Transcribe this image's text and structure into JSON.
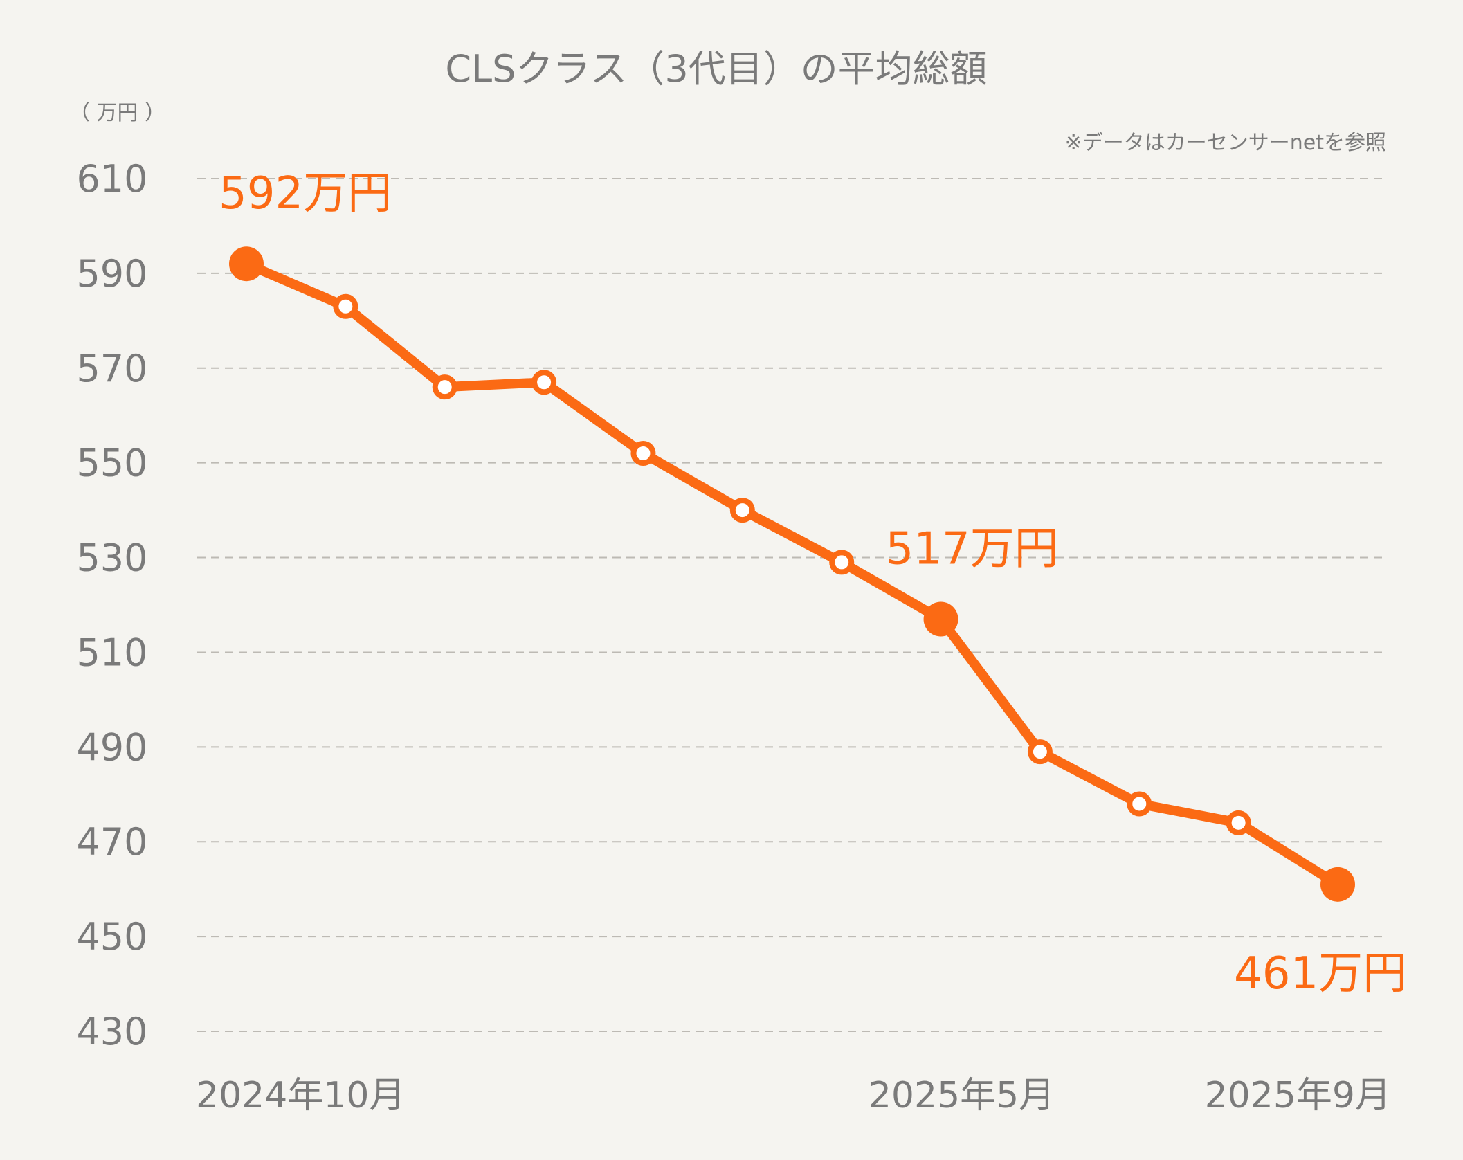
{
  "chart_data": {
    "type": "line",
    "title": "CLSクラス（3代目）の平均総額",
    "unit_label": "（ 万円 ）",
    "source_note": "※データはカーセンサーnetを参照",
    "ylim": [
      430,
      610
    ],
    "yticks": [
      610,
      590,
      570,
      550,
      530,
      510,
      490,
      470,
      450,
      430
    ],
    "grid": true,
    "x_labels": [
      {
        "index": 0,
        "label": "2024年10月"
      },
      {
        "index": 7,
        "label": "2025年5月"
      },
      {
        "index": 11,
        "label": "2025年9月"
      }
    ],
    "series": [
      {
        "name": "平均総額",
        "values": [
          592,
          583,
          566,
          567,
          552,
          540,
          529,
          517,
          489,
          478,
          474,
          461
        ]
      }
    ],
    "highlights": [
      {
        "index": 0,
        "label": "592万円"
      },
      {
        "index": 7,
        "label": "517万円"
      },
      {
        "index": 11,
        "label": "461万円"
      }
    ],
    "colors": {
      "accent": "#fb6a14",
      "text": "#7a7a7a",
      "grid": "#bdbab4",
      "background": "#f5f4f0"
    }
  }
}
